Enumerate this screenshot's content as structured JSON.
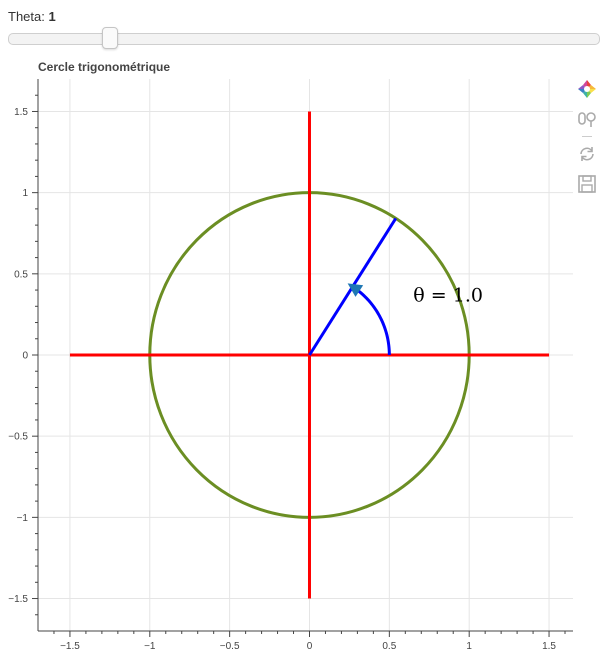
{
  "slider": {
    "label": "Theta: ",
    "value": "1",
    "min": 0,
    "max": 6.2832,
    "current": 1
  },
  "title": "Cercle trigonométrique",
  "toolbar": {
    "icons": [
      "bokeh-logo-icon",
      "box-zoom-icon",
      "reset-icon",
      "save-icon"
    ]
  },
  "colors": {
    "circle": "#6b8e23",
    "axes": "#ff0000",
    "vector": "#0000ff",
    "arrowhead": "#1f77b4",
    "grid": "#e5e5e5"
  },
  "chart_data": {
    "type": "line",
    "title": "Cercle trigonométrique",
    "xlabel": "",
    "ylabel": "",
    "xlim": [
      -1.7,
      1.65
    ],
    "ylim": [
      -1.7,
      1.7
    ],
    "xticks": [
      -1.5,
      -1,
      -0.5,
      0,
      0.5,
      1,
      1.5
    ],
    "xtick_labels": [
      "−1.5",
      "−1",
      "−0.5",
      "0",
      "0.5",
      "1",
      "1.5"
    ],
    "yticks": [
      -1.5,
      -1,
      -0.5,
      0,
      0.5,
      1,
      1.5
    ],
    "ytick_labels": [
      "−1.5",
      "−1",
      "−0.5",
      "0",
      "0.5",
      "1",
      "1.5"
    ],
    "grid": true,
    "series": [
      {
        "name": "unit circle",
        "kind": "circle",
        "center": [
          0,
          0
        ],
        "radius": 1
      },
      {
        "name": "x axis",
        "x": [
          -1.5,
          1.5
        ],
        "y": [
          0,
          0
        ]
      },
      {
        "name": "y axis",
        "x": [
          0,
          0
        ],
        "y": [
          -1.5,
          1.5
        ]
      },
      {
        "name": "vector",
        "x": [
          0,
          0.5403
        ],
        "y": [
          0,
          0.8415
        ]
      },
      {
        "name": "angle arc",
        "kind": "arc",
        "radius": 0.5,
        "start": 0,
        "end": 1
      }
    ],
    "annotations": [
      {
        "text": "θ =  1.0",
        "x": 0.65,
        "y": 0.33
      }
    ]
  }
}
